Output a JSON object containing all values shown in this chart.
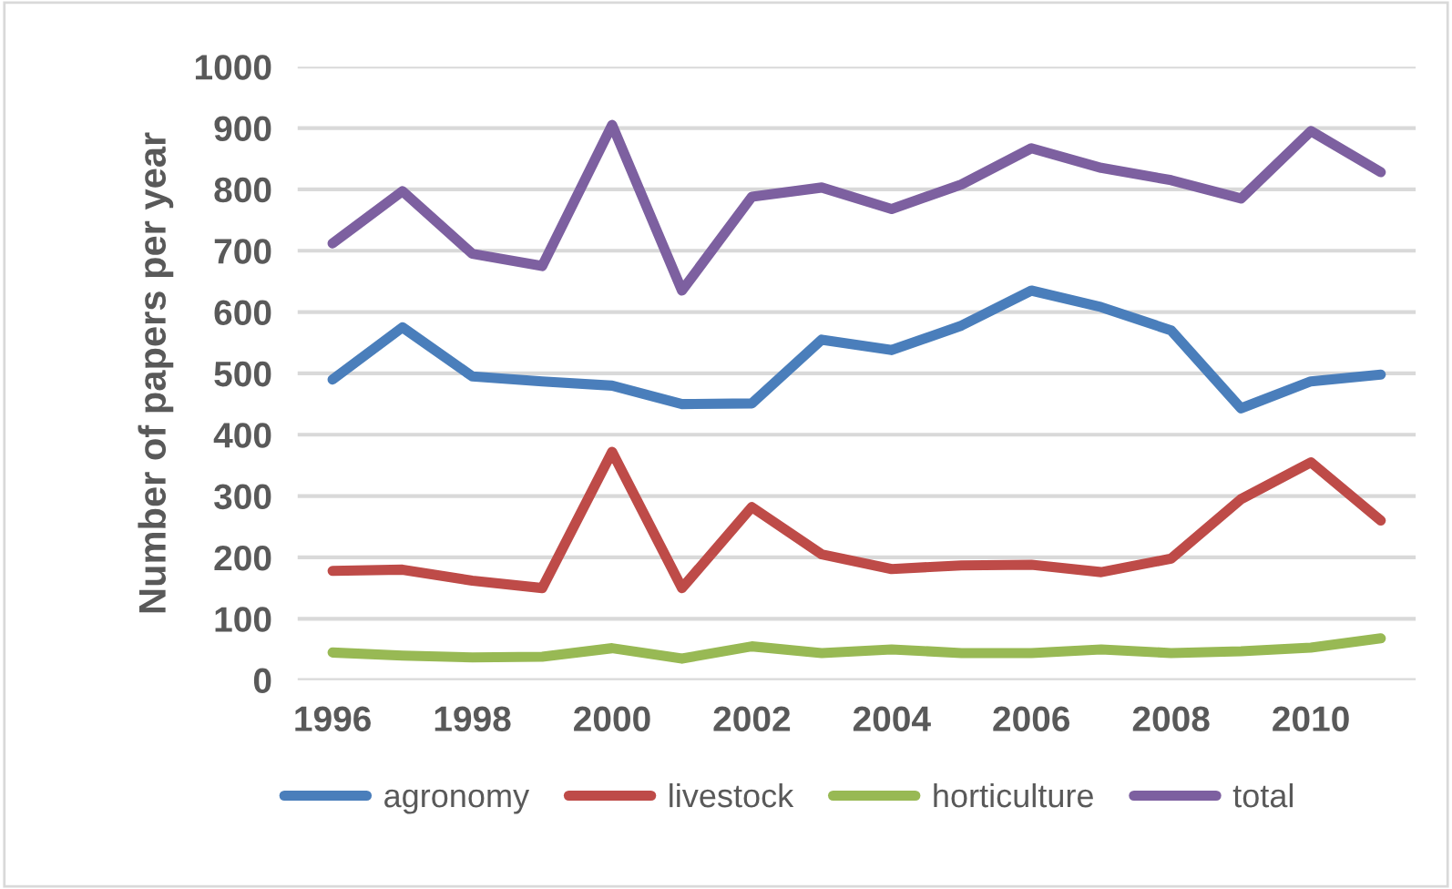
{
  "chart_data": {
    "type": "line",
    "ylabel": "Number of papers per year",
    "categories": [
      "1996",
      null,
      "1998",
      null,
      "2000",
      null,
      "2002",
      null,
      "2004",
      null,
      "2006",
      null,
      "2008",
      null,
      "2010",
      null
    ],
    "series": [
      {
        "name": "agronomy",
        "color": "#4a7ebb",
        "values": [
          490,
          575,
          495,
          487,
          480,
          450,
          451,
          555,
          538,
          578,
          635,
          608,
          570,
          443,
          487,
          498
        ]
      },
      {
        "name": "livestock",
        "color": "#be4b48",
        "values": [
          178,
          180,
          162,
          150,
          372,
          150,
          282,
          205,
          181,
          187,
          188,
          176,
          198,
          295,
          355,
          260
        ]
      },
      {
        "name": "horticulture",
        "color": "#98b954",
        "values": [
          45,
          40,
          37,
          38,
          52,
          35,
          55,
          44,
          50,
          44,
          44,
          50,
          44,
          47,
          53,
          68
        ]
      },
      {
        "name": "total",
        "color": "#7d60a0",
        "values": [
          712,
          797,
          695,
          675,
          905,
          635,
          788,
          803,
          768,
          808,
          867,
          835,
          815,
          785,
          895,
          828
        ]
      }
    ],
    "ylim": [
      0,
      1000
    ],
    "yticks": [
      0,
      100,
      200,
      300,
      400,
      500,
      600,
      700,
      800,
      900,
      1000
    ],
    "grid": "y",
    "legend": "bottom",
    "marker": "none",
    "line_style": "solid"
  }
}
